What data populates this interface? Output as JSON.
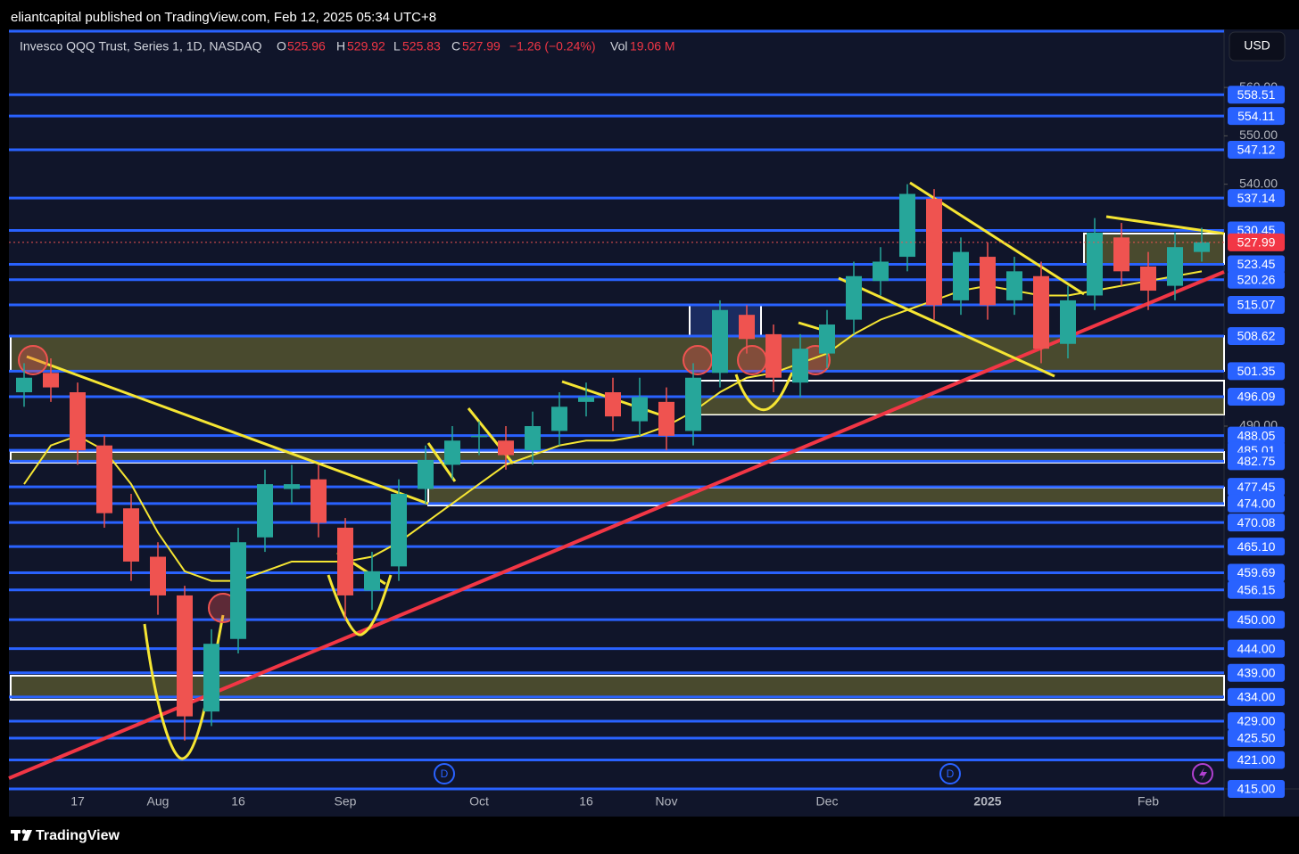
{
  "header": {
    "publisher": "eliantcapital published on TradingView.com, Feb 12, 2025 05:34 UTC+8"
  },
  "chart_data": {
    "type": "candlestick",
    "symbol": "Invesco QQQ Trust, Series 1, 1D, NASDAQ",
    "legend": {
      "o_label": "O",
      "open": 525.96,
      "h_label": "H",
      "high": 529.92,
      "l_label": "L",
      "low": 525.83,
      "c_label": "C",
      "close": 527.99,
      "change": "−1.26 (−0.24%)",
      "vol_label": "Vol",
      "volume": "19.06 M"
    },
    "currency": "USD",
    "categories": [
      null,
      null,
      "17",
      null,
      null,
      "Aug",
      null,
      null,
      "16",
      null,
      null,
      null,
      "Sep",
      null,
      null,
      null,
      null,
      "Oct",
      null,
      null,
      null,
      "16",
      null,
      null,
      "Nov",
      null,
      null,
      null,
      null,
      null,
      "Dec",
      null,
      null,
      null,
      null,
      null,
      "2025",
      null,
      null,
      null,
      null,
      null,
      "Feb",
      null,
      null
    ],
    "open": [
      497,
      501,
      497,
      486,
      473,
      463,
      455,
      431,
      446,
      467,
      477,
      479,
      469,
      456,
      461,
      477,
      482,
      488,
      487,
      485,
      489,
      495,
      497,
      491,
      495,
      489,
      501,
      513,
      509,
      499,
      505,
      512,
      520,
      525,
      537,
      516,
      525,
      516,
      521,
      507,
      517,
      529,
      523,
      519,
      526
    ],
    "high": [
      503,
      504,
      499,
      488,
      476,
      466,
      457,
      448,
      469,
      481,
      482,
      482,
      471,
      464,
      479,
      486,
      490,
      491,
      490,
      493,
      497,
      499,
      500,
      500,
      498,
      503,
      516,
      515,
      511,
      509,
      514,
      524,
      527,
      540,
      539,
      529,
      528,
      525,
      524,
      519,
      533,
      532,
      526,
      530,
      531
    ],
    "low": [
      494,
      495,
      482,
      469,
      458,
      451,
      425,
      428,
      443,
      464,
      474,
      467,
      450,
      452,
      458,
      474,
      479,
      484,
      481,
      482,
      486,
      492,
      489,
      488,
      485,
      486,
      498,
      505,
      497,
      496,
      502,
      509,
      517,
      522,
      512,
      513,
      512,
      513,
      503,
      504,
      514,
      519,
      514,
      516,
      524
    ],
    "close": [
      500,
      498,
      485,
      472,
      462,
      455,
      430,
      445,
      466,
      478,
      478,
      470,
      455,
      460,
      476,
      483,
      487,
      488,
      484,
      490,
      494,
      496,
      492,
      496,
      488,
      500,
      514,
      508,
      500,
      506,
      511,
      521,
      524,
      538,
      515,
      526,
      515,
      522,
      506,
      516,
      530,
      522,
      518,
      527,
      528
    ],
    "up_color": "#26a69a",
    "down_color": "#ef5350",
    "overlays": [
      {
        "color": "#f5e533",
        "values": [
          478,
          486,
          488,
          485,
          478,
          468,
          460,
          458,
          458,
          460,
          462,
          462,
          462,
          463,
          466,
          470,
          474,
          478,
          482,
          484,
          486,
          487,
          487,
          488,
          490,
          493,
          497,
          500,
          501,
          503,
          505,
          509,
          512,
          514,
          516,
          518,
          519,
          518,
          517,
          517,
          518,
          519,
          520,
          521,
          522
        ]
      }
    ],
    "levels": [
      558.51,
      554.11,
      547.12,
      537.14,
      530.45,
      523.45,
      520.26,
      515.07,
      508.62,
      501.35,
      496.09,
      488.05,
      485.01,
      482.75,
      477.45,
      {
        "value": 474,
        "label": "474.00"
      },
      470.08,
      {
        "value": 465.1,
        "label": "465.10"
      },
      459.69,
      456.15,
      {
        "value": 450,
        "label": "450.00"
      },
      {
        "value": 444,
        "label": "444.00"
      },
      {
        "value": 439,
        "label": "439.00"
      },
      {
        "value": 434,
        "label": "434.00"
      },
      {
        "value": 429,
        "label": "429.00"
      },
      {
        "value": 425.5,
        "label": "425.50"
      },
      {
        "value": 421,
        "label": "421.00"
      },
      {
        "value": 415,
        "label": "415.00"
      }
    ],
    "level_color": "#2962ff",
    "ylim": [
      415,
      572
    ],
    "yticks": [
      {
        "value": 560,
        "label": "560.00"
      },
      {
        "value": 550,
        "label": "550.00"
      },
      {
        "value": 540,
        "label": "540.00"
      },
      {
        "value": 490,
        "label": "490.00"
      }
    ],
    "markers": [
      "D",
      "D"
    ]
  },
  "footer": {
    "brand": "TradingView"
  }
}
